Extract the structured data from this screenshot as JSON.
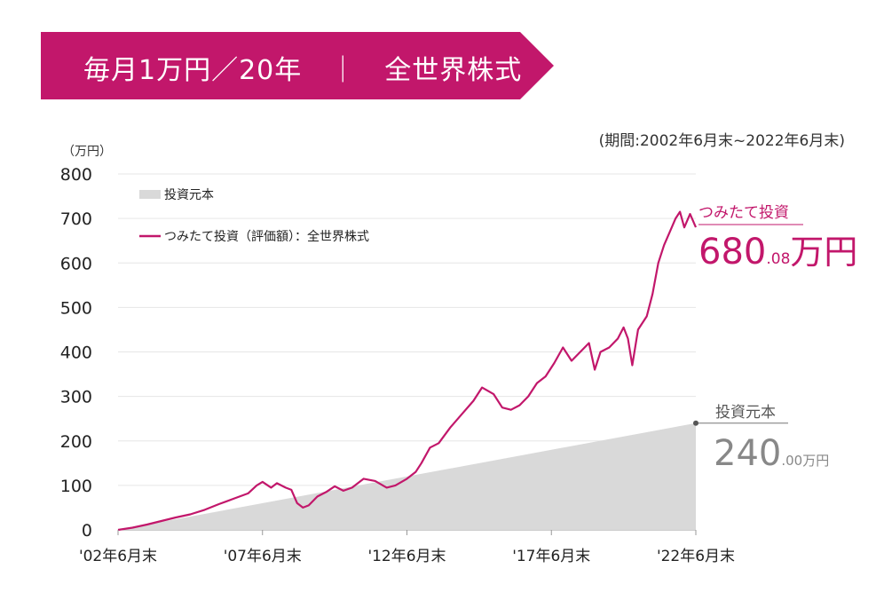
{
  "banner": {
    "title": "毎月1万円／20年　｜　全世界株式",
    "color": "#C2176B"
  },
  "chart_data": {
    "type": "area",
    "period_note": "(期間:2002年6月末~2022年6月末)",
    "y_unit": "（万円）",
    "ylim": [
      0,
      800
    ],
    "yticks": [
      "800",
      "700",
      "600",
      "500",
      "400",
      "300",
      "200",
      "100",
      "0"
    ],
    "xlim": [
      2002.5,
      2022.5
    ],
    "xticks": [
      {
        "x": 2002.5,
        "label": "'02年6月末"
      },
      {
        "x": 2007.5,
        "label": "'07年6月末"
      },
      {
        "x": 2012.5,
        "label": "'12年6月末"
      },
      {
        "x": 2017.5,
        "label": "'17年6月末"
      },
      {
        "x": 2022.5,
        "label": "'22年6月末"
      }
    ],
    "legend": [
      {
        "label": "投資元本",
        "kind": "area",
        "color": "#D9D9D9"
      },
      {
        "label": "つみたて投資（評価額）：全世界株式",
        "kind": "line",
        "color": "#C2176B"
      }
    ],
    "series": [
      {
        "name": "投資元本",
        "kind": "area",
        "color": "#D9D9D9",
        "x": [
          2002.5,
          2022.5
        ],
        "y": [
          0,
          240
        ]
      },
      {
        "name": "つみたて投資（評価額）：全世界株式",
        "kind": "line",
        "color": "#C2176B",
        "x": [
          2002.5,
          2003.0,
          2003.5,
          2004.0,
          2004.5,
          2005.0,
          2005.5,
          2006.0,
          2006.5,
          2007.0,
          2007.3,
          2007.5,
          2007.8,
          2008.0,
          2008.3,
          2008.5,
          2008.7,
          2008.9,
          2009.1,
          2009.4,
          2009.7,
          2010.0,
          2010.3,
          2010.6,
          2011.0,
          2011.4,
          2011.8,
          2012.1,
          2012.5,
          2012.8,
          2013.0,
          2013.3,
          2013.6,
          2014.0,
          2014.4,
          2014.8,
          2015.1,
          2015.5,
          2015.8,
          2016.1,
          2016.4,
          2016.7,
          2017.0,
          2017.3,
          2017.6,
          2017.9,
          2018.2,
          2018.5,
          2018.8,
          2019.0,
          2019.2,
          2019.5,
          2019.8,
          2020.0,
          2020.15,
          2020.3,
          2020.5,
          2020.8,
          2021.0,
          2021.2,
          2021.4,
          2021.6,
          2021.8,
          2021.95,
          2022.1,
          2022.3,
          2022.5
        ],
        "y": [
          0,
          5,
          12,
          20,
          28,
          35,
          45,
          58,
          70,
          82,
          100,
          108,
          95,
          105,
          95,
          90,
          60,
          50,
          55,
          75,
          85,
          98,
          88,
          95,
          115,
          110,
          95,
          100,
          115,
          130,
          150,
          185,
          195,
          230,
          260,
          290,
          320,
          305,
          275,
          270,
          280,
          300,
          330,
          345,
          375,
          410,
          380,
          400,
          420,
          360,
          400,
          410,
          430,
          455,
          430,
          370,
          450,
          480,
          530,
          600,
          640,
          670,
          700,
          715,
          680,
          710,
          680.08
        ]
      }
    ],
    "annotations": {
      "tsumitate_label": "つみたて投資",
      "tsumitate_value": "680",
      "tsumitate_decimal": ".08",
      "tsumitate_unit": "万円",
      "principal_label": "投資元本",
      "principal_value": "240",
      "principal_decimal": ".00",
      "principal_unit": "万円"
    }
  }
}
